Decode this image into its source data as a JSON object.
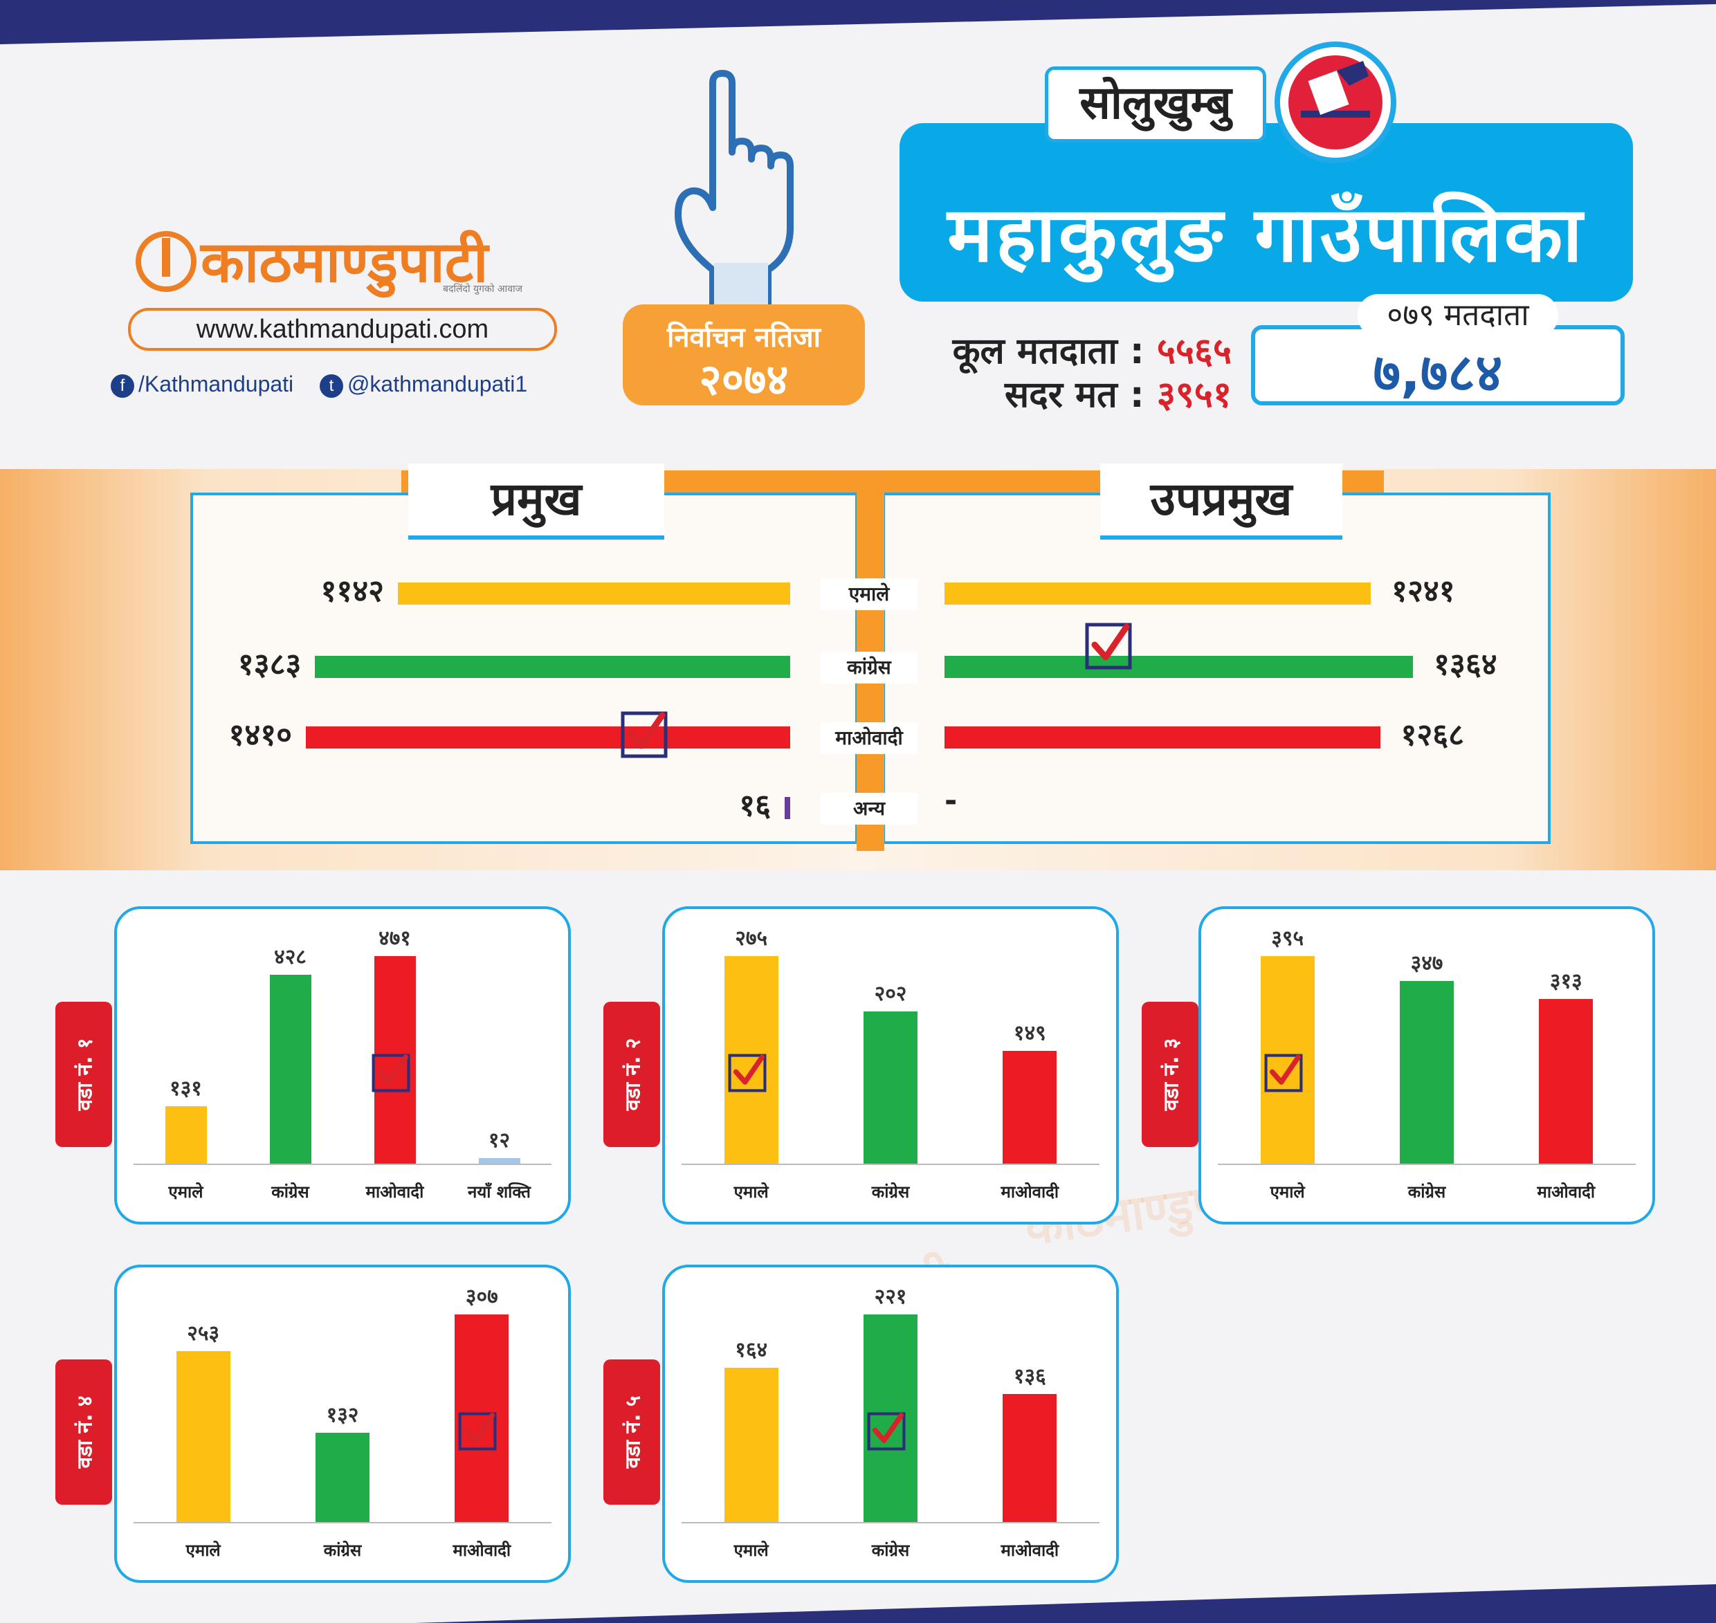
{
  "brand": {
    "name": "काठमाण्डुपाटी",
    "tagline": "बदलिंदो युगको आवाज",
    "website": "www.kathmandupati.com",
    "facebook": "/Kathmandupati",
    "twitter": "@kathmandupati1"
  },
  "result": {
    "label": "निर्वाचन नतिजा",
    "year": "२०७४"
  },
  "district": "सोलुखुम्बु",
  "municipality": "महाकुलुङ गाउँपालिका",
  "voters": {
    "total_label": "कूल मतदाता :",
    "total_value": "५५६५",
    "valid_label": "सदर मत :",
    "valid_value": "३९५१",
    "voters_2079_label": "०७९ मतदाता",
    "voters_2079_value": "७,७८४"
  },
  "colors": {
    "uml": "#fcbf12",
    "congress": "#20ac48",
    "maoist": "#ec1c24",
    "naya_shakti": "#a7c5e8",
    "accent": "#1fa9e8",
    "orange": "#f79a2a"
  },
  "chart_data": [
    {
      "type": "bar",
      "orientation": "horizontal",
      "title": "प्रमुख",
      "categories": [
        "एमाले",
        "कांग्रेस",
        "माओवादी",
        "अन्य"
      ],
      "values": [
        1142,
        1383,
        1410,
        16
      ],
      "value_labels": [
        "११४२",
        "१३८३",
        "१४१०",
        "१६"
      ],
      "winner": "माओवादी"
    },
    {
      "type": "bar",
      "orientation": "horizontal",
      "title": "उपप्रमुख",
      "categories": [
        "एमाले",
        "कांग्रेस",
        "माओवादी",
        "अन्य"
      ],
      "values": [
        1241,
        1364,
        1268,
        null
      ],
      "value_labels": [
        "१२४१",
        "१३६४",
        "१२६८",
        "-"
      ],
      "winner": "कांग्रेस"
    },
    {
      "type": "bar",
      "title": "वडा नं. १",
      "categories": [
        "एमाले",
        "कांग्रेस",
        "माओवादी",
        "नयाँ शक्ति"
      ],
      "values": [
        131,
        428,
        471,
        12
      ],
      "value_labels": [
        "१३१",
        "४२८",
        "४७१",
        "१२"
      ],
      "winner": "माओवादी"
    },
    {
      "type": "bar",
      "title": "वडा नं. २",
      "categories": [
        "एमाले",
        "कांग्रेस",
        "माओवादी"
      ],
      "values": [
        275,
        202,
        149
      ],
      "value_labels": [
        "२७५",
        "२०२",
        "१४९"
      ],
      "winner": "एमाले"
    },
    {
      "type": "bar",
      "title": "वडा नं. ३",
      "categories": [
        "एमाले",
        "कांग्रेस",
        "माओवादी"
      ],
      "values": [
        395,
        347,
        313
      ],
      "value_labels": [
        "३९५",
        "३४७",
        "३१३"
      ],
      "winner": "एमाले"
    },
    {
      "type": "bar",
      "title": "वडा नं. ४",
      "categories": [
        "एमाले",
        "कांग्रेस",
        "माओवादी"
      ],
      "values": [
        253,
        132,
        307
      ],
      "value_labels": [
        "२५३",
        "१३२",
        "३०७"
      ],
      "winner": "माओवादी"
    },
    {
      "type": "bar",
      "title": "वडा नं. ५",
      "categories": [
        "एमाले",
        "कांग्रेस",
        "माओवादी"
      ],
      "values": [
        164,
        221,
        136
      ],
      "value_labels": [
        "१६४",
        "२२१",
        "१३६"
      ],
      "winner": "कांग्रेस"
    }
  ]
}
